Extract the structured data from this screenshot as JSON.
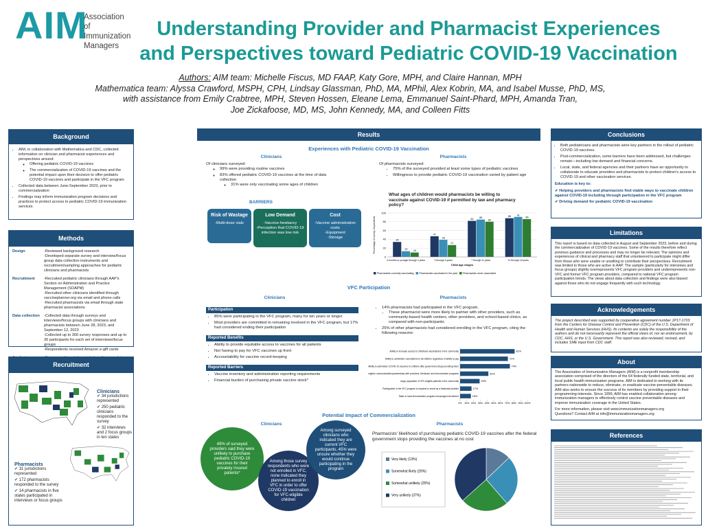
{
  "header": {
    "logo": "AIM",
    "org": "Association of Immunization Managers",
    "title": "Understanding Provider and Pharmacist Experiences and Perspectives toward Pediatric COVID-19 Vaccination",
    "authors_label": "Authors:",
    "authors": [
      "AIM team: Michelle Fiscus, MD FAAP, Katy Gore, MPH, and Claire Hannan, MPH",
      "Mathematica team: Alyssa Crawford, MSPH, CPH, Lindsay Glassman, PhD, MA, MPhil,  Alex Kobrin, MA, and Isabel Musse, PhD, MS,",
      "with assistance from Emily Crabtree, MPH, Steven Hossen, Eleane Lema, Emmanuel Saint-Phard, MPH, Amanda Tran,",
      "Joe Zickafoose, MD, MS, John Kennedy, MA, and Colleen Fitts"
    ]
  },
  "background": {
    "title": "Background",
    "items": [
      "AIM, in collaboration with Mathematica and CDC, collected information on clinician and pharmacist experiences and perspectives around:",
      "Collected data between June-September 2023, prior to commercialization",
      "Findings may inform immunization program decisions and practices to protect access to pediatric COVID-19 immunization services"
    ],
    "subitems": [
      "Offering pediatric COVID-19 vaccines",
      "The commercialization of COVID-19 vaccines and the potential impact upon their decision to offer pediatric COVID-19 vaccines and participate in the VFC program"
    ]
  },
  "methods": {
    "title": "Methods",
    "rows": [
      {
        "label": "Design",
        "lines": [
          "-Reviewed background research",
          "-Developed separate survey and interview/focus group data collection instruments and recruitment/sampling approaches for pediatric clinicians and pharmacists"
        ]
      },
      {
        "label": "Recruitment",
        "lines": [
          "-Recruited pediatric clinicians through AAP's Section on Administration and Practice Management (SOAPM)",
          "-Recruited other clinicians identified through vaccineplanner.org via email and phone calls",
          "-Recruited pharmacists via email through state pharmacist associations"
        ]
      },
      {
        "label": "Data collection",
        "lines": [
          "-Collected data through surveys and interviews/focus groups with clinicians and pharmacists between June 28, 2023, and September 12, 2023",
          "-Collected up to 300 survey responses and up to 30 participants for each set of interviews/focus groups",
          "-Respondents received Amazon e-gift cards"
        ]
      },
      {
        "label": "Analysis",
        "lines": [
          "-Frequency/descriptive statistics of survey data",
          "-Thematic analysis of interview transcripts",
          "-Compared findings from each data source"
        ]
      }
    ]
  },
  "recruitment": {
    "title": "Recruitment",
    "clinicians": {
      "title": "Clinicians",
      "items": [
        "34 jurisdictions represented",
        "250 pediatric clinicians responded to the survey",
        "32 interviews and 2 focus groups in ten states"
      ]
    },
    "pharmacists": {
      "title": "Pharmacists",
      "items": [
        "31 jurisdictions represented",
        "172 pharmacists responded to the survey",
        "14 pharmacists in five states participated in interviews or focus groups"
      ]
    }
  },
  "results": {
    "title": "Results",
    "experiences": {
      "title": "Experiences with Pediatric COVID-19 Vaccination",
      "clinicians": {
        "heading": "Clinicians",
        "lead": "Of clinicians surveyed:",
        "items": [
          "99% were providing routine vaccines",
          "83% offered pediatric COVID-19 vaccines at the time of data collection"
        ],
        "subitem": "31% were only vaccinating some ages of children"
      },
      "pharmacists": {
        "heading": "Pharmacists",
        "lead": "Of pharmacists surveyed:",
        "items": [
          "75% of the surveyed provided at least some types of pediatric vaccines",
          "Willingness to provide pediatric COVID-19 vaccination varied by patient age"
        ]
      },
      "barriers": {
        "title": "BARRIERS",
        "boxes": [
          {
            "title": "Risk of Wastage",
            "lines": [
              "-Multi-dose vials"
            ]
          },
          {
            "title": "Low Demand",
            "lines": [
              "-Vaccine-hesitancy",
              "-Perception that COVID-19 infection was low risk"
            ]
          },
          {
            "title": "Cost",
            "lines": [
              "-Vaccine administration costs",
              "-Equipment",
              "-Storage"
            ]
          }
        ]
      }
    },
    "vfc": {
      "title": "VFC Participation",
      "clinicians": {
        "heading": "Clinicians",
        "panels": [
          {
            "title": "Participation",
            "items": [
              "85% were participating in the VFC program, many for ten years or longer",
              "Most providers are committed to remaining involved in the VFC program, but 17% had considered ending their participation"
            ]
          },
          {
            "title": "Reported Benefits",
            "items": [
              "Ability to provide equitable access to vaccines for all patients",
              "Not having to pay for VFC vaccines up front",
              "Accountability for vaccine record-keeping"
            ]
          },
          {
            "title": "Reported Barriers",
            "items": [
              "Vaccine inventory and administration reporting requirements",
              "Financial burden of purchasing private vaccine stock*"
            ]
          }
        ]
      },
      "pharmacists": {
        "heading": "Pharmacists",
        "items": [
          "14% pharmacists had participated in the VFC program.",
          "25% of other pharmacists had considered enrolling in the VFC program, citing the following reasons:"
        ],
        "subitem": "These pharmacist were more likely to partner with other providers, such as community-based health centers, other providers, and school-based clinics, as compared with non-participants."
      }
    },
    "impact": {
      "title": "Potential Impact of Commercialization",
      "clinicians": {
        "heading": "Clinicians",
        "circles": [
          "49% of surveyed providers said they were unlikely to purchase pediatric COVID-19 vaccines for their privately insured patients*",
          "Among those survey respondents who were not enrolled in VFC, none indicated they planned to enroll in VFC in order to offer COVID-19 vaccination for VFC-eligible children",
          "Among surveyed clinicians who indicated they are current VFC participants, 45% were unsure whether they would continue participating in the program"
        ]
      },
      "pharmacists": {
        "heading": "Pharmacists"
      }
    }
  },
  "chart_data": [
    {
      "type": "bar",
      "title": "What ages of children would pharmacists be willing to vaccinate against COVID-19 if permitted by law and pharmacy policy?",
      "xlabel": "Child age ranges",
      "ylabel": "Percentage of survey respondents",
      "categories": [
        "6 months or younger through 2 years",
        "3 through 6 years",
        "7 through 11 years",
        "12 through 18 years"
      ],
      "series": [
        {
          "name": "Pharmacists currently vaccinating",
          "color": "#1f3864",
          "values": [
            34,
            47,
            82,
            88
          ]
        },
        {
          "name": "Pharmacists vaccinated in the past",
          "color": "#3a8fb7",
          "values": [
            13,
            39,
            85,
            91
          ]
        },
        {
          "name": "Pharmacists never vaccinated",
          "color": "#2e7d32",
          "values": [
            10,
            27,
            80,
            86
          ]
        }
      ],
      "ylim": [
        0,
        100
      ],
      "yticks": [
        0,
        20,
        40,
        60,
        80,
        100
      ],
      "grid": true,
      "legend": "bottom"
    },
    {
      "type": "barh",
      "categories": [
        "Ability to increase access to childhood vaccinations in the community",
        "Ability to administer vaccinations to all children regardless of ability to pay",
        "Ability to administer COVID-19 vaccines to children after government stops providing them",
        "Strengthen communication/partnerships with providers, Medicaid, and immunization programs",
        "Large population of VFC-eligible patients in the community",
        "Participation in the VFC program is required to enroll as a Medicaid provider",
        "State or local immunization program encouraged enrollment"
      ],
      "values": [
        81,
        71,
        74,
        42,
        29,
        17,
        16
      ],
      "value_labels": [
        "81%",
        "71%",
        "74%",
        "42%",
        "29%",
        "17%",
        "16%"
      ],
      "color": "#1f4e79",
      "xlim": [
        0,
        100
      ],
      "xticks": [
        {
          "value": 0,
          "label": "0%"
        },
        {
          "value": 10,
          "label": "10%"
        },
        {
          "value": 20,
          "label": "20%"
        },
        {
          "value": 30,
          "label": "30%"
        },
        {
          "value": 40,
          "label": "40%"
        },
        {
          "value": 50,
          "label": "50%"
        },
        {
          "value": 60,
          "label": "60%"
        },
        {
          "value": 70,
          "label": "70%"
        },
        {
          "value": 80,
          "label": "80%"
        },
        {
          "value": 90,
          "label": "90%"
        },
        {
          "value": 100,
          "label": "100%"
        }
      ]
    },
    {
      "type": "pie",
      "title": "Pharmacists' likelihood of purchasing pediatric COVID-19 vaccines after the federal government stops providing the vaccines at no cost",
      "categories": [
        "Very likely (13%)",
        "Somewhat likely (26%)",
        "Somewhat unlikely (25%)",
        "Very unlikely (37%)"
      ],
      "values": [
        13,
        26,
        25,
        37
      ],
      "colors": [
        "#5b7a99",
        "#3a8fb7",
        "#2e8b3a",
        "#1f3864"
      ]
    }
  ],
  "conclusions": {
    "title": "Conclusions",
    "items": [
      "Both pediatricians and pharmacists were key partners in the rollout of pediatric COVID-19 vaccines.",
      "Post-commercialization, some barriers have been addressed, but challenges remain—including low demand and financial concerns.",
      "Local, state, and federal agencies and their partners have an opportunity to collaborate to educate providers and pharmacists to protect children's access to COVID-19 and other vaccination services."
    ],
    "key": "Education is key to:",
    "checks": [
      "Helping providers and pharmacists find viable ways to vaccinate children against COVID-19 including through  participation in the VFC program",
      "Driving demand for pediatric COVID-19 vaccination"
    ]
  },
  "limitations": {
    "title": "Limitations",
    "text": "This report is based on data collected in August and September 2023, before and during the commercialization of COVID-19 vaccines. Some of the results therefore reflect previous guidance and processes and may no longer be relevant. The opinions and experiences of clinical and pharmacy staff that volunteered to participate might differ from those who were unable or unwilling to contribute their perspectives. Recruitment was limited to those who are active in AAP. The sample (particularly for interviews and focus groups) slightly overrepresents VFC program providers and underrepresents non-VFC and former VFC program providers, compared to national VFC program participation trends. The views about data collection and findings were also biased against those who do not engage frequently with such technology."
  },
  "acknowledgements": {
    "title": "Acknowledgements",
    "text": "The project described was supported by cooperative agreement number 1P17-1703 from the Centers for Disease Control and Prevention (CDC) of the U.S. Department of Health and Human Services (HHS). Its contents are solely the responsibility of the authors and do not necessarily represent the official views of, nor an endorsement, by CDC, HHS, or the U.S. Government. This report was also reviewed, revised, and includes SME input from CDC staff."
  },
  "about": {
    "title": "About",
    "text": "The Association of Immunization Managers (AIM) is a nonprofit membership association comprised of the directors of the 64 federally funded state, territorial, and local public health immunization programs. AIM is dedicated to working with its partners nationwide to reduce, eliminate, or eradicate vaccine-preventable diseases. AIM also works to ensure the success of its members by providing support in their programming interests. Since 1999, AIM has enabled collaboration among immunization managers to effectively control vaccine preventable diseases and improve immunization coverage in the United States.",
    "more": "For more information, please visit www.immunizationmanagers.org",
    "contact": "Questions? Contact AIM at info@immunizationmanagers.org"
  },
  "references": {
    "title": "References"
  }
}
